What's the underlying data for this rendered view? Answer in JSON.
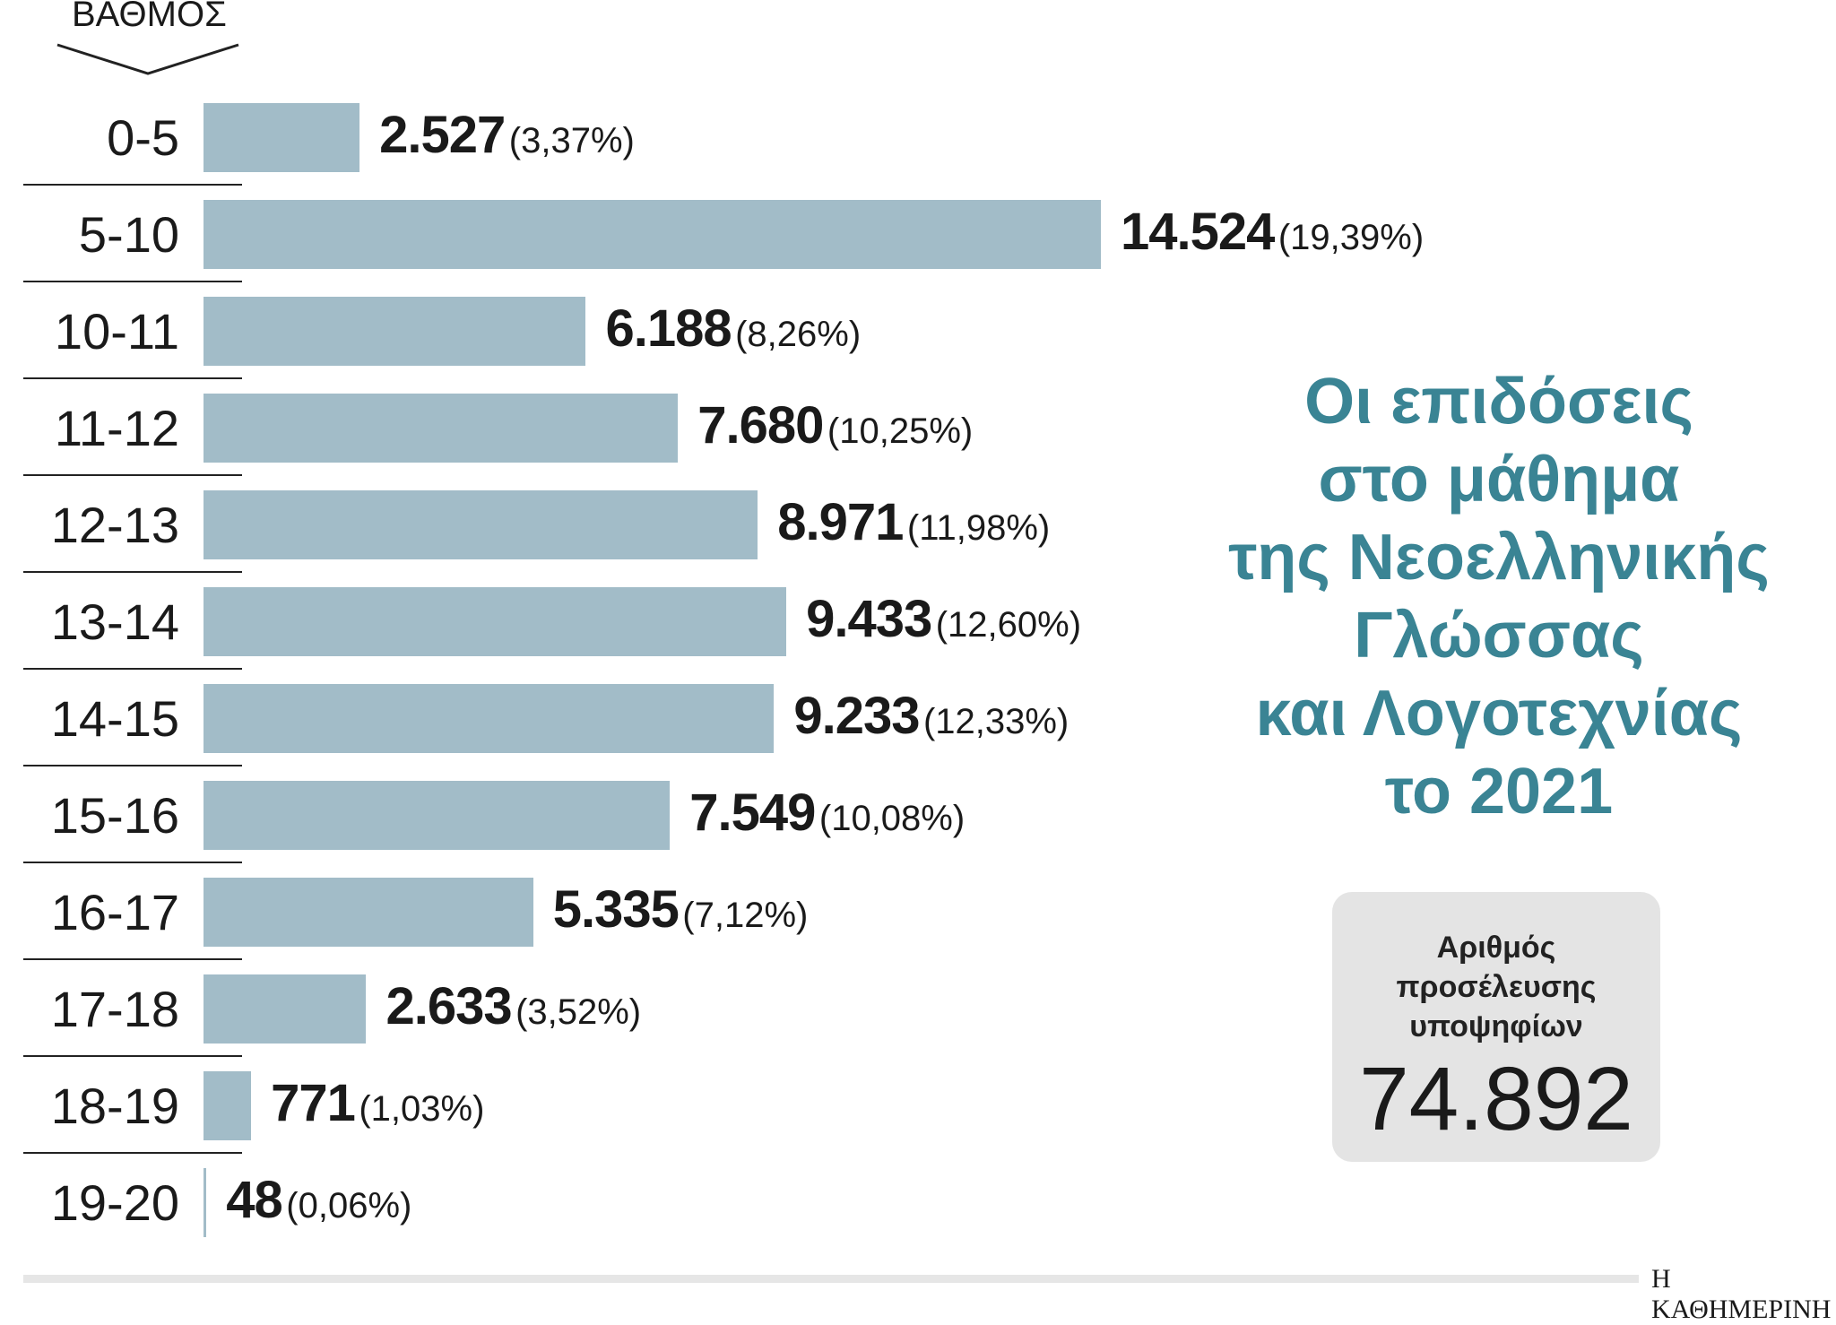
{
  "chart_data": {
    "type": "bar",
    "orientation": "horizontal",
    "axis_title": "ΒΑΘΜΟΣ",
    "categories": [
      "0-5",
      "5-10",
      "10-11",
      "11-12",
      "12-13",
      "13-14",
      "14-15",
      "15-16",
      "16-17",
      "17-18",
      "18-19",
      "19-20"
    ],
    "values": [
      2527,
      14524,
      6188,
      7680,
      8971,
      9433,
      9233,
      7549,
      5335,
      2633,
      771,
      48
    ],
    "value_labels": [
      "2.527",
      "14.524",
      "6.188",
      "7.680",
      "8.971",
      "9.433",
      "9.233",
      "7.549",
      "5.335",
      "2.633",
      "771",
      "48"
    ],
    "percent_labels": [
      "(3,37%)",
      "(19,39%)",
      "(8,26%)",
      "(10,25%)",
      "(11,98%)",
      "(12,60%)",
      "(12,33%)",
      "(10,08%)",
      "(7,12%)",
      "(3,52%)",
      "(1,03%)",
      "(0,06%)"
    ],
    "bar_color": "#a2bcc8",
    "grid": false
  },
  "title_lines": [
    "Οι επιδόσεις",
    "στο μάθημα",
    "της Νεοελληνικής",
    "Γλώσσας",
    "και Λογοτεχνίας",
    "το 2021"
  ],
  "title_color": "#3a8494",
  "total": {
    "label_lines": [
      "Αριθμός",
      "προσέλευσης",
      "υποψηφίων"
    ],
    "value": "74.892"
  },
  "source": "Η ΚΑΘΗΜΕΡΙΝΗ"
}
